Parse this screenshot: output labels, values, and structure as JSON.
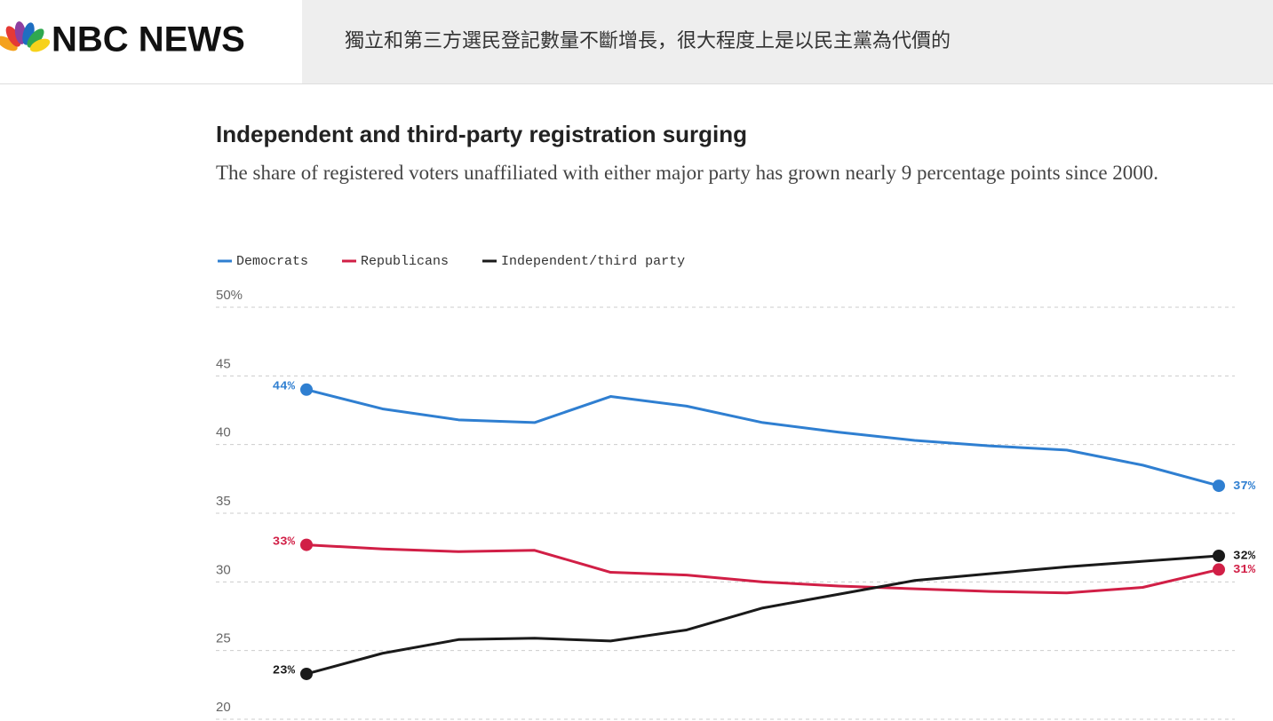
{
  "header": {
    "logo": "NBC NEWS",
    "headline": "獨立和第三方選民登記數量不斷增長，很大程度上是以民主黨為代價的"
  },
  "chart_data": {
    "type": "line",
    "title": "Independent and third-party registration surging",
    "subtitle": "The share of registered voters unaffiliated with either major party has grown nearly 9 percentage points since 2000.",
    "categories": [
      null,
      null,
      null,
      null,
      null,
      null,
      null,
      null,
      null,
      null,
      null,
      null,
      null
    ],
    "series": [
      {
        "name": "Democrats",
        "color": "#2f7fd1",
        "values": [
          44,
          42.6,
          41.8,
          41.6,
          43.5,
          42.8,
          41.6,
          40.9,
          40.3,
          39.9,
          39.6,
          38.5,
          37
        ],
        "value_labels": [
          "44%",
          null,
          null,
          null,
          null,
          null,
          null,
          null,
          null,
          null,
          null,
          null,
          "37%"
        ]
      },
      {
        "name": "Republicans",
        "color": "#d11f46",
        "values": [
          32.7,
          32.4,
          32.2,
          32.3,
          30.7,
          30.5,
          30.0,
          29.7,
          29.5,
          29.3,
          29.2,
          29.6,
          30.9
        ],
        "value_labels": [
          "33%",
          null,
          null,
          null,
          null,
          null,
          null,
          null,
          null,
          null,
          null,
          null,
          "31%"
        ]
      },
      {
        "name": "Independent/third party",
        "color": "#1a1a1a",
        "values": [
          23.3,
          24.8,
          25.8,
          25.9,
          25.7,
          26.5,
          28.1,
          29.1,
          30.1,
          30.6,
          31.1,
          31.5,
          31.9
        ],
        "value_labels": [
          "23%",
          null,
          null,
          null,
          null,
          null,
          null,
          null,
          null,
          null,
          null,
          null,
          "32%"
        ]
      }
    ],
    "ylim": [
      20,
      50
    ],
    "yticks": [
      20,
      25,
      30,
      35,
      40,
      45,
      {
        "value": 50,
        "label": "50%"
      }
    ],
    "grid": true,
    "legend": "top"
  }
}
